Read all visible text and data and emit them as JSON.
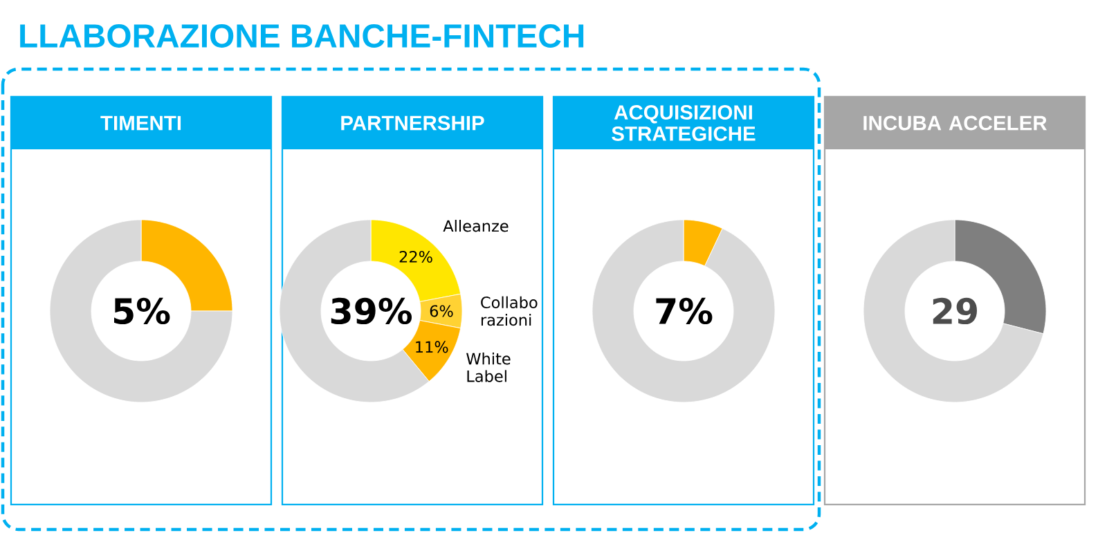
{
  "chart_data": [
    {
      "type": "other",
      "title": "LLABORAZIONE BANCHE-FINTECH"
    },
    {
      "type": "donut",
      "title": "TIMENTI",
      "categories": [
        null,
        null
      ],
      "values": [
        25,
        75
      ],
      "colors": [
        "#ffb600",
        "#d9d9d9"
      ],
      "annotations": [
        "5%"
      ]
    },
    {
      "type": "donut",
      "title": "PARTNERSHIP",
      "categories": [
        "Alleanze",
        "Collabo razioni",
        "White Label",
        null
      ],
      "values": [
        22,
        6,
        11,
        61
      ],
      "colors": [
        "#ffe600",
        "#ffd233",
        "#ffb600",
        "#d9d9d9"
      ],
      "value_labels": [
        "22%",
        "6%",
        "11%",
        null
      ],
      "annotations": [
        "39%"
      ]
    },
    {
      "type": "donut",
      "title": "ACQUISIZIONI STRATEGICHE",
      "categories": [
        null,
        null
      ],
      "values": [
        7,
        93
      ],
      "colors": [
        "#ffb600",
        "#d9d9d9"
      ],
      "annotations": [
        "7%"
      ]
    },
    {
      "type": "donut",
      "title": "INCUBA ACCELER",
      "categories": [
        null,
        null
      ],
      "values": [
        29,
        71
      ],
      "colors": [
        "#7f7f7f",
        "#d9d9d9"
      ],
      "annotations": [
        "29"
      ]
    }
  ]
}
